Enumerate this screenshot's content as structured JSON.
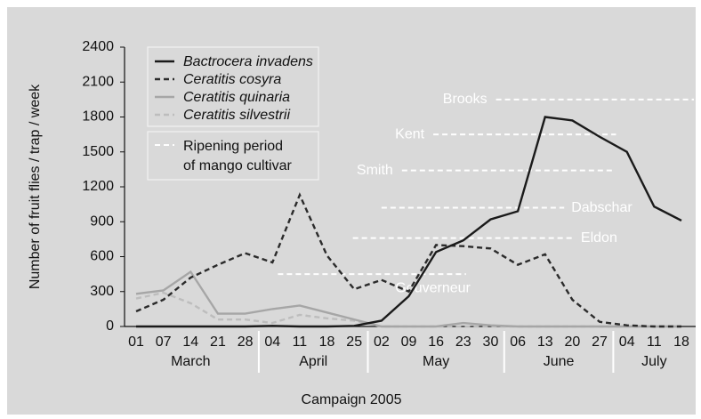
{
  "chart_data": {
    "type": "line",
    "y_label": "Number of fruit flies / trap / week",
    "x_label": "Campaign 2005",
    "categories": [
      "01",
      "07",
      "14",
      "21",
      "28",
      "04",
      "11",
      "18",
      "25",
      "02",
      "09",
      "16",
      "23",
      "30",
      "06",
      "13",
      "20",
      "27",
      "04",
      "11",
      "18"
    ],
    "x_groups": [
      {
        "label": "March",
        "span": 5
      },
      {
        "label": "April",
        "span": 4
      },
      {
        "label": "May",
        "span": 5
      },
      {
        "label": "June",
        "span": 4
      },
      {
        "label": "July",
        "span": 3
      }
    ],
    "ylim": [
      0,
      2400
    ],
    "yticks": [
      0,
      300,
      600,
      900,
      1200,
      1500,
      1800,
      2100,
      2400
    ],
    "series": [
      {
        "name": "Bactrocera invadens",
        "color": "#1a1a1a",
        "dash": false,
        "values": [
          0,
          0,
          0,
          0,
          0,
          5,
          0,
          0,
          5,
          50,
          260,
          640,
          740,
          920,
          990,
          1800,
          1770,
          1630,
          1500,
          1030,
          910
        ]
      },
      {
        "name": "Ceratitis cosyra",
        "color": "#2b2b2b",
        "dash": true,
        "values": [
          130,
          230,
          420,
          530,
          630,
          550,
          1130,
          610,
          320,
          400,
          300,
          700,
          690,
          670,
          530,
          620,
          230,
          40,
          10,
          0,
          0
        ]
      },
      {
        "name": "Ceratitis quinaria",
        "color": "#a6a6a6",
        "dash": false,
        "values": [
          280,
          310,
          470,
          110,
          110,
          150,
          180,
          120,
          60,
          0,
          0,
          0,
          30,
          10,
          0,
          0,
          0,
          0,
          0,
          0,
          0
        ]
      },
      {
        "name": "Ceratitis silvestrii",
        "color": "#bdbdbd",
        "dash": true,
        "values": [
          240,
          290,
          200,
          60,
          60,
          30,
          100,
          70,
          50,
          0,
          0,
          0,
          0,
          0,
          0,
          0,
          0,
          0,
          0,
          0,
          0
        ]
      }
    ],
    "ripening_legend": [
      "Ripening period",
      "of mango cultivar"
    ],
    "ripening": [
      {
        "name": "Brooks",
        "value": 1950,
        "start": 13.2,
        "end": 20.5,
        "label_position": "left"
      },
      {
        "name": "Kent",
        "value": 1650,
        "start": 10.9,
        "end": 17.6,
        "label_position": "left"
      },
      {
        "name": "Smith",
        "value": 1340,
        "start": 9.75,
        "end": 17.45,
        "label_position": "left"
      },
      {
        "name": "Dabschar",
        "value": 1020,
        "start": 9.0,
        "end": 15.7,
        "label_position": "right"
      },
      {
        "name": "Eldon",
        "value": 760,
        "start": 7.95,
        "end": 16.05,
        "label_position": "right"
      },
      {
        "name": "Gouverneur",
        "value": 450,
        "start": 5.2,
        "end": 12.1,
        "label_position": "below"
      }
    ]
  }
}
